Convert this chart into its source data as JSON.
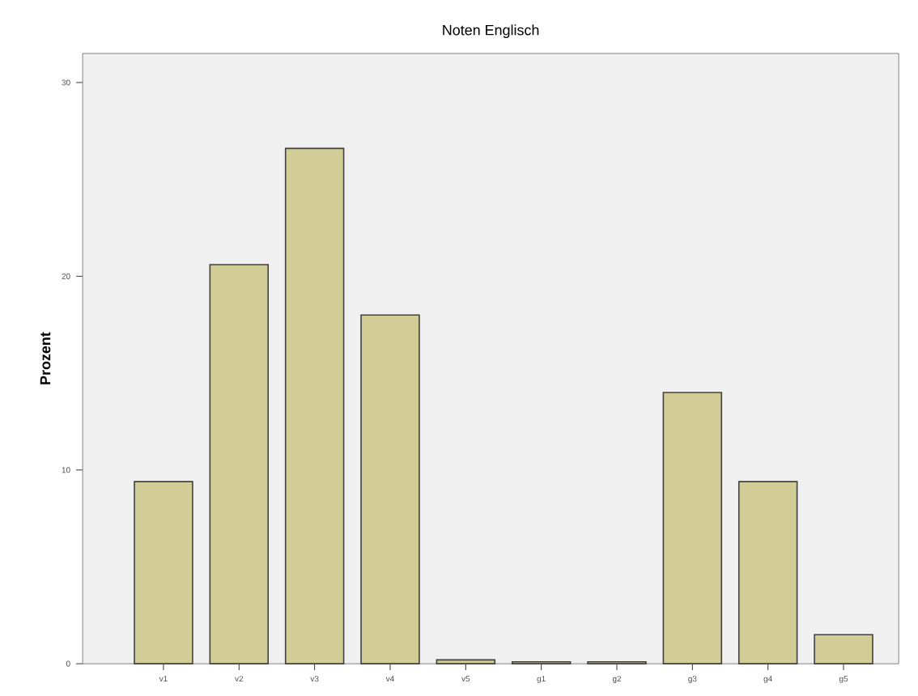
{
  "chart_data": {
    "type": "bar",
    "title": "Noten Englisch",
    "ylabel": "Prozent",
    "categories": [
      "v1",
      "v2",
      "v3",
      "v4",
      "v5",
      "g1",
      "g2",
      "g3",
      "g4",
      "g5"
    ],
    "values": [
      9.4,
      20.6,
      26.6,
      18.0,
      0.2,
      0.1,
      0.1,
      14.0,
      9.4,
      1.5
    ],
    "color": "#d2cd96",
    "ylim": [
      0,
      31.5
    ],
    "yticks": [
      0,
      10,
      20,
      30
    ]
  }
}
